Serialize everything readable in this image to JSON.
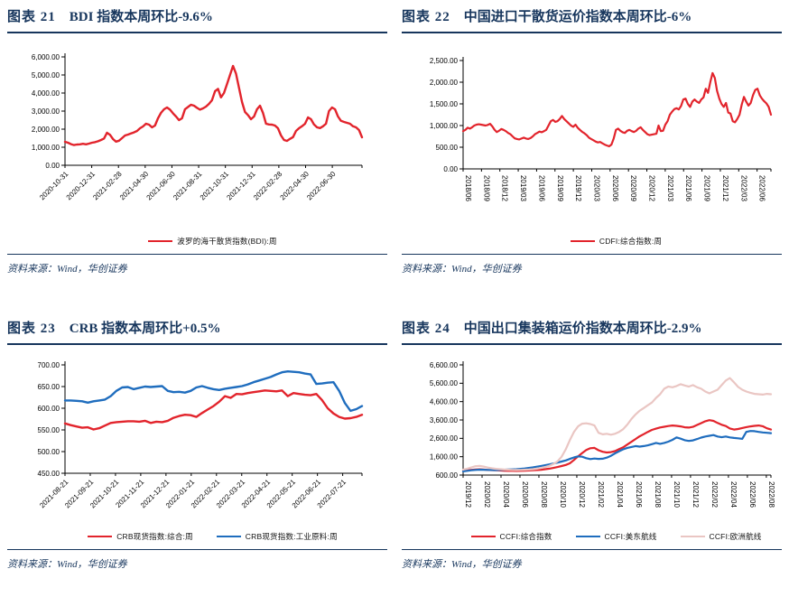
{
  "page_title": "研究报告图表页",
  "colors": {
    "navy": "#17365d",
    "red": "#e2242c",
    "blue": "#1f6dbe",
    "pink": "#eac6c3",
    "axis": "#000000"
  },
  "panels": [
    {
      "label": "图表 21",
      "title": "BDI 指数本周环比-9.6%",
      "source": "资料来源：Wind，华创证券"
    },
    {
      "label": "图表 22",
      "title": "中国进口干散货运价指数本周环比-6%",
      "source": "资料来源：Wind，华创证券"
    },
    {
      "label": "图表 23",
      "title": "CRB 指数本周环比+0.5%",
      "source": "资料来源：Wind，华创证券"
    },
    {
      "label": "图表 24",
      "title": "中国出口集装箱运价指数本周环比-2.9%",
      "source": "资料来源：Wind，华创证券"
    }
  ],
  "chart_data": [
    {
      "type": "line",
      "title": "BDI 指数本周环比-9.6%",
      "xlabel": "",
      "ylabel": "",
      "grid": false,
      "legend_position": "bottom",
      "ylim": [
        0,
        6000
      ],
      "y_tick_step": 1000,
      "y_tick_format": "#,##0.00",
      "x_tick_labels": [
        "2020-10-31",
        "2020-12-31",
        "2021-02-28",
        "2021-04-30",
        "2021-06-30",
        "2021-08-31",
        "2021-10-31",
        "2021-12-31",
        "2022-02-28",
        "2022-04-30",
        "2022-06-30"
      ],
      "series": [
        {
          "name": "波罗的海干散货指数(BDI):周",
          "color": "#e2242c",
          "values": [
            1300,
            1250,
            1170,
            1120,
            1150,
            1160,
            1190,
            1160,
            1200,
            1250,
            1280,
            1330,
            1400,
            1480,
            1800,
            1690,
            1450,
            1310,
            1360,
            1500,
            1650,
            1700,
            1760,
            1820,
            1900,
            2050,
            2150,
            2300,
            2250,
            2100,
            2200,
            2600,
            2900,
            3100,
            3200,
            3080,
            2880,
            2700,
            2500,
            2600,
            3100,
            3230,
            3350,
            3300,
            3180,
            3080,
            3150,
            3250,
            3400,
            3600,
            4100,
            4230,
            3760,
            4000,
            4500,
            5000,
            5500,
            5080,
            4300,
            3500,
            2950,
            2780,
            2550,
            2700,
            3100,
            3300,
            2900,
            2300,
            2260,
            2250,
            2200,
            2050,
            1650,
            1400,
            1350,
            1460,
            1560,
            1900,
            2050,
            2160,
            2300,
            2650,
            2550,
            2260,
            2100,
            2060,
            2160,
            2300,
            3000,
            3200,
            3100,
            2700,
            2460,
            2400,
            2350,
            2300,
            2160,
            2100,
            1950,
            1550
          ]
        }
      ]
    },
    {
      "type": "line",
      "title": "中国进口干散货运价指数本周环比-6%",
      "xlabel": "",
      "ylabel": "",
      "grid": false,
      "legend_position": "bottom",
      "ylim": [
        0,
        2500
      ],
      "y_tick_step": 500,
      "y_tick_format": "#,##0.00",
      "x_tick_labels": [
        "2018/06",
        "2018/09",
        "2018/12",
        "2019/03",
        "2019/06",
        "2019/09",
        "2019/12",
        "2020/03",
        "2020/06",
        "2020/09",
        "2020/12",
        "2021/03",
        "2021/06",
        "2021/09",
        "2021/12",
        "2022/03",
        "2022/06"
      ],
      "series": [
        {
          "name": "CDFI:综合指数:周",
          "color": "#e2242c",
          "values": [
            870,
            900,
            950,
            930,
            960,
            1000,
            1020,
            1030,
            1020,
            1010,
            1000,
            1015,
            1040,
            980,
            905,
            850,
            880,
            920,
            900,
            870,
            830,
            800,
            750,
            705,
            690,
            680,
            700,
            720,
            700,
            690,
            710,
            750,
            800,
            830,
            860,
            845,
            870,
            900,
            1000,
            1100,
            1130,
            1085,
            1100,
            1150,
            1220,
            1150,
            1100,
            1050,
            1000,
            970,
            1020,
            950,
            900,
            855,
            820,
            780,
            720,
            690,
            660,
            630,
            610,
            620,
            590,
            560,
            540,
            520,
            560,
            700,
            900,
            930,
            880,
            845,
            830,
            880,
            900,
            870,
            850,
            880,
            930,
            960,
            900,
            850,
            800,
            780,
            790,
            800,
            810,
            1000,
            870,
            880,
            1020,
            1100,
            1250,
            1320,
            1380,
            1400,
            1370,
            1450,
            1600,
            1620,
            1500,
            1430,
            1550,
            1600,
            1555,
            1520,
            1600,
            1650,
            1850,
            1755,
            2000,
            2210,
            2100,
            1800,
            1620,
            1500,
            1430,
            1520,
            1300,
            1275,
            1100,
            1075,
            1150,
            1250,
            1480,
            1660,
            1550,
            1460,
            1520,
            1700,
            1820,
            1850,
            1700,
            1620,
            1560,
            1510,
            1430,
            1250
          ]
        }
      ]
    },
    {
      "type": "line",
      "title": "CRB 指数本周环比+0.5%",
      "xlabel": "",
      "ylabel": "",
      "grid": false,
      "legend_position": "bottom",
      "ylim": [
        450,
        700
      ],
      "y_tick_step": 50,
      "y_tick_format": "#,##0.00",
      "x_tick_labels": [
        "2021-08-21",
        "2021-09-21",
        "2021-10-21",
        "2021-11-21",
        "2021-12-21",
        "2022-01-21",
        "2022-02-21",
        "2022-03-21",
        "2022-04-21",
        "2022-05-21",
        "2022-06-21",
        "2022-07-21"
      ],
      "series": [
        {
          "name": "CRB现货指数:综合:周",
          "color": "#e2242c",
          "values": [
            565,
            561,
            558,
            555,
            556,
            551,
            554,
            560,
            566,
            568,
            569,
            570,
            570,
            569,
            571,
            566,
            569,
            568,
            571,
            578,
            582,
            585,
            584,
            580,
            589,
            597,
            605,
            615,
            628,
            624,
            633,
            632,
            635,
            637,
            639,
            641,
            640,
            639,
            641,
            628,
            635,
            633,
            631,
            630,
            633,
            619,
            600,
            588,
            580,
            576,
            577,
            580,
            585
          ]
        },
        {
          "name": "CRB现货指数:工业原料:周",
          "color": "#1f6dbe",
          "values": [
            618,
            618,
            617,
            616,
            613,
            616,
            618,
            620,
            628,
            640,
            648,
            649,
            644,
            647,
            650,
            649,
            650,
            651,
            640,
            637,
            638,
            636,
            640,
            648,
            651,
            647,
            644,
            642,
            645,
            647,
            649,
            651,
            655,
            660,
            664,
            668,
            672,
            678,
            683,
            685,
            684,
            683,
            680,
            678,
            656,
            657,
            659,
            660,
            640,
            612,
            594,
            598,
            605
          ]
        }
      ]
    },
    {
      "type": "line",
      "title": "中国出口集装箱运价指数本周环比-2.9%",
      "xlabel": "",
      "ylabel": "",
      "grid": false,
      "legend_position": "bottom",
      "ylim": [
        600,
        6600
      ],
      "y_tick_step": 1000,
      "y_tick_format": "#,##0.00",
      "x_tick_labels": [
        "2019/12",
        "2020/02",
        "2020/04",
        "2020/06",
        "2020/08",
        "2020/10",
        "2020/12",
        "2021/02",
        "2021/04",
        "2021/06",
        "2021/08",
        "2021/10",
        "2021/12",
        "2022/02",
        "2022/04",
        "2022/06",
        "2022/08"
      ],
      "series": [
        {
          "name": "CCFI:综合指数",
          "color": "#e2242c",
          "values": [
            820,
            855,
            885,
            900,
            915,
            900,
            880,
            870,
            860,
            850,
            840,
            832,
            830,
            826,
            832,
            840,
            850,
            862,
            875,
            892,
            920,
            950,
            990,
            1040,
            1090,
            1150,
            1240,
            1420,
            1620,
            1800,
            1960,
            2060,
            2080,
            1950,
            1870,
            1830,
            1850,
            1905,
            2010,
            2110,
            2260,
            2410,
            2560,
            2710,
            2830,
            2950,
            3060,
            3130,
            3190,
            3230,
            3270,
            3300,
            3280,
            3250,
            3200,
            3185,
            3225,
            3330,
            3430,
            3530,
            3590,
            3550,
            3440,
            3340,
            3270,
            3140,
            3080,
            3110,
            3160,
            3210,
            3250,
            3280,
            3300,
            3260,
            3150,
            3080
          ]
        },
        {
          "name": "CCFI:美东航线",
          "color": "#1f6dbe",
          "values": [
            800,
            830,
            860,
            880,
            895,
            890,
            880,
            875,
            870,
            878,
            888,
            898,
            908,
            918,
            938,
            958,
            988,
            1018,
            1058,
            1098,
            1138,
            1178,
            1228,
            1278,
            1338,
            1398,
            1478,
            1558,
            1620,
            1600,
            1520,
            1470,
            1500,
            1480,
            1490,
            1550,
            1650,
            1780,
            1900,
            2000,
            2080,
            2130,
            2180,
            2150,
            2180,
            2220,
            2280,
            2350,
            2300,
            2350,
            2420,
            2520,
            2650,
            2580,
            2500,
            2460,
            2490,
            2560,
            2640,
            2700,
            2740,
            2780,
            2700,
            2660,
            2700,
            2650,
            2620,
            2600,
            2570,
            2950,
            3000,
            2990,
            2950,
            2920,
            2900,
            2880
          ]
        },
        {
          "name": "CCFI:欧洲航线",
          "color": "#eac6c3",
          "values": [
            900,
            950,
            1020,
            1080,
            1100,
            1060,
            1010,
            970,
            940,
            920,
            900,
            890,
            880,
            875,
            880,
            890,
            900,
            920,
            950,
            990,
            1040,
            1100,
            1200,
            1350,
            1600,
            2000,
            2500,
            2950,
            3250,
            3400,
            3420,
            3380,
            3300,
            2900,
            2820,
            2850,
            2800,
            2850,
            2950,
            3100,
            3350,
            3650,
            3900,
            4100,
            4250,
            4400,
            4550,
            4800,
            5000,
            5300,
            5420,
            5380,
            5450,
            5550,
            5480,
            5420,
            5500,
            5380,
            5300,
            5150,
            5050,
            5150,
            5250,
            5500,
            5750,
            5880,
            5650,
            5400,
            5250,
            5150,
            5080,
            5020,
            5000,
            4980,
            5020,
            5000
          ]
        }
      ]
    }
  ]
}
